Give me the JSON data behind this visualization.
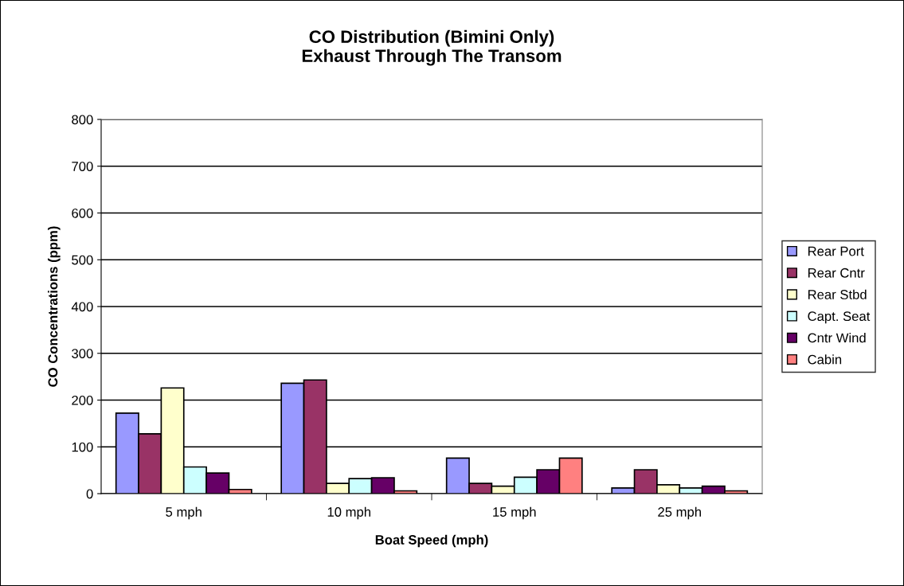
{
  "chart_data": {
    "type": "bar",
    "title": "CO Distribution (Bimini Only)\nExhaust Through The Transom",
    "xlabel": "Boat Speed (mph)",
    "ylabel": "CO Concentrations (ppm)",
    "categories": [
      "5 mph",
      "10 mph",
      "15 mph",
      "25 mph"
    ],
    "series": [
      {
        "name": "Rear Port",
        "color": "#9999ff",
        "values": [
          172,
          236,
          76,
          12
        ]
      },
      {
        "name": "Rear Cntr",
        "color": "#993366",
        "values": [
          128,
          243,
          22,
          51
        ]
      },
      {
        "name": "Rear Stbd",
        "color": "#ffffcc",
        "values": [
          226,
          22,
          16,
          19
        ]
      },
      {
        "name": "Capt. Seat",
        "color": "#ccffff",
        "values": [
          57,
          32,
          35,
          12
        ]
      },
      {
        "name": "Cntr Wind",
        "color": "#660066",
        "values": [
          44,
          34,
          51,
          16
        ]
      },
      {
        "name": "Cabin",
        "color": "#ff8080",
        "values": [
          9,
          6,
          76,
          6
        ]
      }
    ],
    "ylim": [
      0,
      800
    ],
    "yticks": [
      0,
      100,
      200,
      300,
      400,
      500,
      600,
      700,
      800
    ],
    "grid": "y",
    "legend": "right"
  }
}
